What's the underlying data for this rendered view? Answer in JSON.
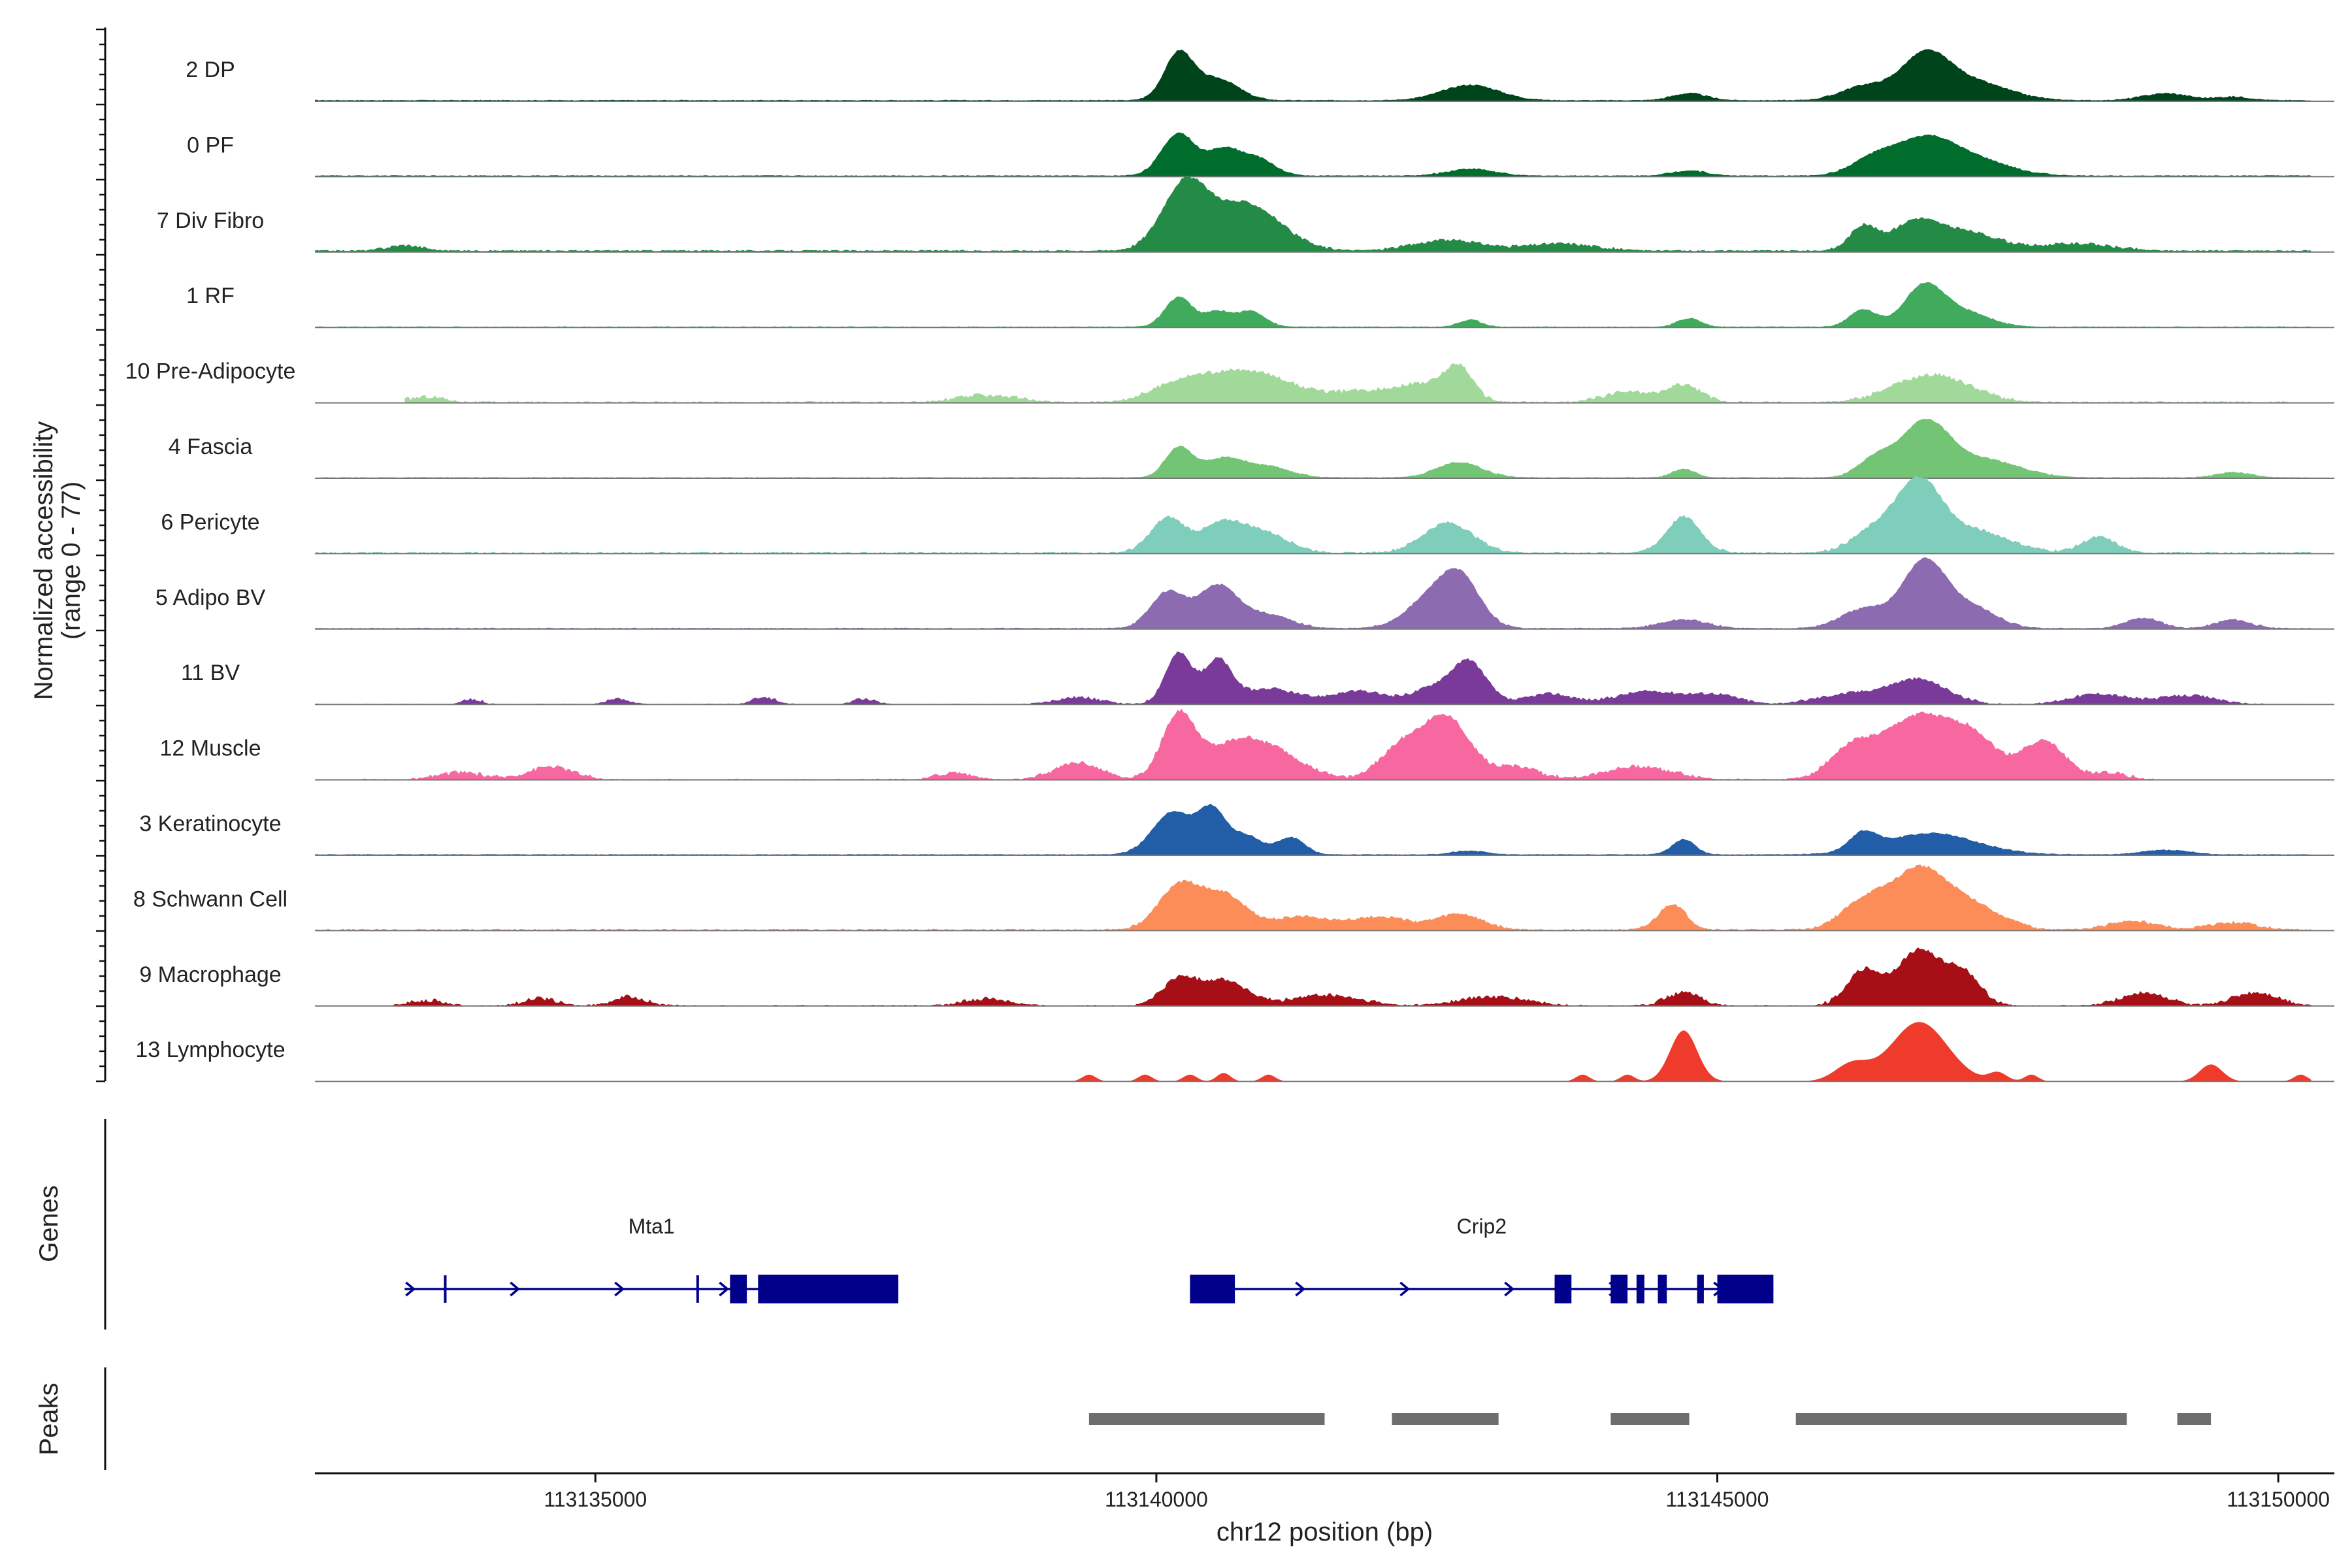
{
  "chart_data": {
    "type": "area",
    "title": "",
    "region": "chr12",
    "xlabel": "chr12 position (bp)",
    "ylabel_line1": "Normalized accessibility",
    "ylabel_line2": "(range 0 - 77)",
    "xlim": [
      113132500,
      113150500
    ],
    "ylim": [
      0,
      77
    ],
    "xticks": [
      {
        "value": 113135000,
        "label": "113135000"
      },
      {
        "value": 113140000,
        "label": "113140000"
      },
      {
        "value": 113145000,
        "label": "113145000"
      },
      {
        "value": 113150000,
        "label": "113150000"
      }
    ],
    "tracks": [
      {
        "name": "2 DP",
        "color": "#00441b",
        "signal_start": 113132500,
        "signal_end": 113150300,
        "baseline": 1.2,
        "noise": 1.5,
        "peaks": [
          [
            113140200,
            55,
            130
          ],
          [
            113140550,
            25,
            180
          ],
          [
            113142800,
            18,
            250
          ],
          [
            113144750,
            8,
            150
          ],
          [
            113146300,
            16,
            200
          ],
          [
            113146850,
            52,
            220
          ],
          [
            113147300,
            20,
            300
          ],
          [
            113149000,
            8,
            200
          ],
          [
            113149600,
            4,
            150
          ]
        ]
      },
      {
        "name": "0 PF",
        "color": "#006d2c",
        "signal_start": 113132500,
        "signal_end": 113150300,
        "baseline": 1.2,
        "noise": 1.5,
        "peaks": [
          [
            113140200,
            50,
            150
          ],
          [
            113140600,
            30,
            140
          ],
          [
            113140900,
            20,
            150
          ],
          [
            113142800,
            8,
            200
          ],
          [
            113144750,
            6,
            150
          ],
          [
            113146400,
            20,
            200
          ],
          [
            113146850,
            40,
            250
          ],
          [
            113147300,
            18,
            300
          ]
        ]
      },
      {
        "name": "7 Div Fibro",
        "color": "#238b45",
        "signal_start": 113132500,
        "signal_end": 113150300,
        "baseline": 1.5,
        "noise": 3,
        "peaks": [
          [
            113133300,
            6,
            150
          ],
          [
            113140250,
            75,
            200
          ],
          [
            113140800,
            55,
            300
          ],
          [
            113142600,
            12,
            300
          ],
          [
            113143600,
            8,
            300
          ],
          [
            113146300,
            28,
            120
          ],
          [
            113146750,
            30,
            200
          ],
          [
            113147200,
            22,
            300
          ],
          [
            113148200,
            8,
            300
          ]
        ]
      },
      {
        "name": "1 RF",
        "color": "#41ab5d",
        "signal_start": 113132500,
        "signal_end": 113150300,
        "baseline": 0.8,
        "noise": 1.5,
        "peaks": [
          [
            113140200,
            35,
            120
          ],
          [
            113140550,
            18,
            120
          ],
          [
            113140850,
            18,
            120
          ],
          [
            113142800,
            8,
            100
          ],
          [
            113144750,
            10,
            100
          ],
          [
            113146300,
            20,
            120
          ],
          [
            113146850,
            50,
            180
          ],
          [
            113147250,
            15,
            200
          ]
        ]
      },
      {
        "name": "10 Pre-Adipocyte",
        "color": "#a1d99b",
        "signal_start": 113133300,
        "signal_end": 113150100,
        "baseline": 0.6,
        "noise": 4,
        "peaks": [
          [
            113133500,
            6,
            150
          ],
          [
            113138500,
            8,
            250
          ],
          [
            113140200,
            20,
            250
          ],
          [
            113140700,
            30,
            300
          ],
          [
            113141100,
            15,
            250
          ],
          [
            113141800,
            12,
            300
          ],
          [
            113142400,
            20,
            250
          ],
          [
            113142700,
            35,
            120
          ],
          [
            113144200,
            12,
            200
          ],
          [
            113144700,
            20,
            150
          ],
          [
            113146700,
            20,
            250
          ],
          [
            113147000,
            18,
            200
          ],
          [
            113147300,
            10,
            200
          ]
        ]
      },
      {
        "name": "4 Fascia",
        "color": "#74c476",
        "signal_start": 113132500,
        "signal_end": 113150300,
        "baseline": 0.9,
        "noise": 1.5,
        "peaks": [
          [
            113140200,
            35,
            120
          ],
          [
            113140600,
            22,
            180
          ],
          [
            113141000,
            12,
            200
          ],
          [
            113142700,
            18,
            200
          ],
          [
            113144700,
            10,
            100
          ],
          [
            113146400,
            20,
            150
          ],
          [
            113146850,
            65,
            220
          ],
          [
            113147400,
            20,
            300
          ],
          [
            113149600,
            6,
            150
          ]
        ]
      },
      {
        "name": "6 Pericyte",
        "color": "#7fcdbb",
        "signal_start": 113132500,
        "signal_end": 113150300,
        "baseline": 1,
        "noise": 3,
        "peaks": [
          [
            113140100,
            40,
            150
          ],
          [
            113140600,
            35,
            200
          ],
          [
            113141000,
            20,
            200
          ],
          [
            113142600,
            35,
            220
          ],
          [
            113144700,
            42,
            150
          ],
          [
            113146400,
            25,
            200
          ],
          [
            113146800,
            80,
            200
          ],
          [
            113147300,
            25,
            300
          ],
          [
            113148400,
            18,
            150
          ]
        ]
      },
      {
        "name": "5 Adipo BV",
        "color": "#8c6bb1",
        "signal_start": 113132500,
        "signal_end": 113150300,
        "baseline": 0.9,
        "noise": 2,
        "peaks": [
          [
            113140100,
            42,
            150
          ],
          [
            113140550,
            50,
            180
          ],
          [
            113141000,
            15,
            200
          ],
          [
            113142400,
            28,
            200
          ],
          [
            113142700,
            60,
            180
          ],
          [
            113144700,
            10,
            200
          ],
          [
            113146300,
            22,
            200
          ],
          [
            113146850,
            80,
            200
          ],
          [
            113147300,
            22,
            200
          ],
          [
            113148800,
            12,
            150
          ],
          [
            113149600,
            10,
            150
          ]
        ]
      },
      {
        "name": "11 BV",
        "color": "#7a3a9a",
        "signal_start": 113132500,
        "signal_end": 113150300,
        "baseline": 0,
        "noise": 3,
        "peaks": [
          [
            113133900,
            6,
            80
          ],
          [
            113135200,
            6,
            100
          ],
          [
            113136500,
            8,
            100
          ],
          [
            113137400,
            6,
            100
          ],
          [
            113139300,
            8,
            200
          ],
          [
            113140200,
            60,
            120
          ],
          [
            113140550,
            50,
            120
          ],
          [
            113141000,
            18,
            250
          ],
          [
            113141800,
            15,
            250
          ],
          [
            113142500,
            20,
            200
          ],
          [
            113142800,
            45,
            150
          ],
          [
            113143500,
            12,
            200
          ],
          [
            113144400,
            15,
            300
          ],
          [
            113145000,
            10,
            200
          ],
          [
            113146200,
            12,
            300
          ],
          [
            113146800,
            28,
            250
          ],
          [
            113148400,
            12,
            250
          ],
          [
            113149200,
            10,
            250
          ]
        ]
      },
      {
        "name": "12 Muscle",
        "color": "#f768a1",
        "signal_start": 113132900,
        "signal_end": 113148900,
        "baseline": 0,
        "noise": 4,
        "peaks": [
          [
            113133800,
            8,
            200
          ],
          [
            113134600,
            15,
            200
          ],
          [
            113138200,
            8,
            150
          ],
          [
            113139300,
            20,
            200
          ],
          [
            113140200,
            75,
            150
          ],
          [
            113140700,
            40,
            250
          ],
          [
            113141100,
            25,
            250
          ],
          [
            113142200,
            40,
            200
          ],
          [
            113142600,
            70,
            200
          ],
          [
            113143200,
            15,
            200
          ],
          [
            113144300,
            15,
            300
          ],
          [
            113146200,
            35,
            200
          ],
          [
            113146800,
            75,
            300
          ],
          [
            113147300,
            40,
            200
          ],
          [
            113147900,
            45,
            200
          ],
          [
            113148500,
            8,
            150
          ]
        ]
      },
      {
        "name": "3 Keratinocyte",
        "color": "#225ea8",
        "signal_start": 113132500,
        "signal_end": 113150300,
        "baseline": 0.9,
        "noise": 1.5,
        "peaks": [
          [
            113140150,
            50,
            180
          ],
          [
            113140500,
            48,
            120
          ],
          [
            113140800,
            22,
            140
          ],
          [
            113141200,
            20,
            120
          ],
          [
            113142800,
            4,
            150
          ],
          [
            113144700,
            18,
            100
          ],
          [
            113146300,
            20,
            120
          ],
          [
            113146900,
            25,
            400
          ],
          [
            113149000,
            5,
            200
          ]
        ]
      },
      {
        "name": "8 Schwann Cell",
        "color": "#fc8d59",
        "signal_start": 113132500,
        "signal_end": 113150300,
        "baseline": 1,
        "noise": 3,
        "peaks": [
          [
            113140200,
            50,
            180
          ],
          [
            113140600,
            40,
            200
          ],
          [
            113141300,
            15,
            250
          ],
          [
            113142000,
            15,
            250
          ],
          [
            113142700,
            18,
            200
          ],
          [
            113144600,
            30,
            120
          ],
          [
            113146300,
            30,
            200
          ],
          [
            113146800,
            70,
            250
          ],
          [
            113147300,
            25,
            250
          ],
          [
            113148700,
            10,
            200
          ],
          [
            113149600,
            8,
            200
          ]
        ]
      },
      {
        "name": "9 Macrophage",
        "color": "#a50f15",
        "signal_start": 113133200,
        "signal_end": 113150300,
        "baseline": 0,
        "noise": 4,
        "peaks": [
          [
            113133500,
            6,
            150
          ],
          [
            113134500,
            8,
            150
          ],
          [
            113135300,
            10,
            150
          ],
          [
            113138500,
            8,
            200
          ],
          [
            113140200,
            30,
            150
          ],
          [
            113140600,
            30,
            200
          ],
          [
            113141500,
            12,
            300
          ],
          [
            113143000,
            10,
            300
          ],
          [
            113144700,
            15,
            150
          ],
          [
            113146300,
            40,
            150
          ],
          [
            113146800,
            65,
            200
          ],
          [
            113147200,
            35,
            150
          ],
          [
            113148800,
            15,
            200
          ],
          [
            113149800,
            15,
            200
          ]
        ]
      },
      {
        "name": "13 Lymphocyte",
        "color": "#ef3b2c",
        "signal_start": 113132500,
        "signal_end": 113150300,
        "baseline": 0,
        "noise": 0,
        "peaks": [
          [
            113139400,
            8,
            60
          ],
          [
            113139900,
            8,
            60
          ],
          [
            113140300,
            8,
            60
          ],
          [
            113140600,
            10,
            60
          ],
          [
            113141000,
            8,
            60
          ],
          [
            113143800,
            8,
            60
          ],
          [
            113144200,
            8,
            60
          ],
          [
            113144700,
            60,
            120
          ],
          [
            113146200,
            20,
            150
          ],
          [
            113146800,
            70,
            250
          ],
          [
            113147500,
            10,
            80
          ],
          [
            113147800,
            8,
            60
          ],
          [
            113149400,
            20,
            100
          ],
          [
            113150200,
            8,
            60
          ]
        ]
      }
    ],
    "genes_label": "Genes",
    "genes": [
      {
        "name": "Mta1",
        "start": 113133300,
        "end": 113137700,
        "strand": "+",
        "exons": [
          [
            113133650,
            113133670
          ],
          [
            113135900,
            113135920
          ],
          [
            113136200,
            113136350
          ],
          [
            113136450,
            113137700
          ]
        ]
      },
      {
        "name": "Crip2",
        "start": 113140300,
        "end": 113145500,
        "strand": "+",
        "exons": [
          [
            113140300,
            113140700
          ],
          [
            113143550,
            113143700
          ],
          [
            113144050,
            113144200
          ],
          [
            113144280,
            113144350
          ],
          [
            113144470,
            113144550
          ],
          [
            113144820,
            113144880
          ],
          [
            113145000,
            113145500
          ]
        ]
      }
    ],
    "peaks_label": "Peaks",
    "peak_regions": [
      [
        113139400,
        113141500
      ],
      [
        113142100,
        113143050
      ],
      [
        113144050,
        113144750
      ],
      [
        113145700,
        113148650
      ],
      [
        113149100,
        113149400
      ]
    ]
  }
}
